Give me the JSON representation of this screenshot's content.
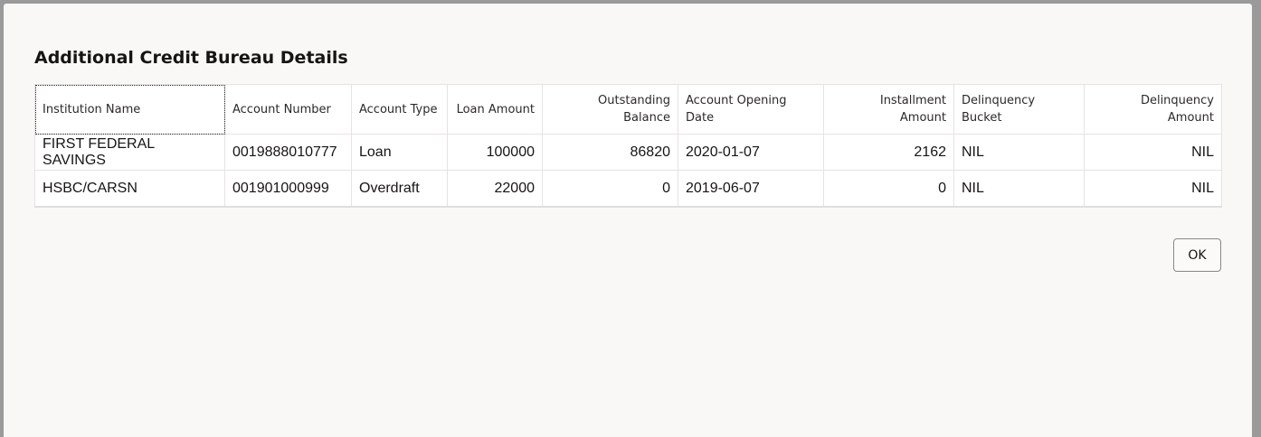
{
  "dialog": {
    "title": "Additional Credit Bureau Details",
    "ok_label": "OK"
  },
  "table": {
    "headers": [
      "Institution Name",
      "Account Number",
      "Account Type",
      "Loan Amount",
      "Outstanding Balance",
      "Account Opening Date",
      "Installment Amount",
      "Delinquency Bucket",
      "Delinquency Amount"
    ],
    "rows": [
      [
        "FIRST FEDERAL SAVINGS",
        "0019888010777",
        "Loan",
        "100000",
        "86820",
        "2020-01-07",
        "2162",
        "NIL",
        "NIL"
      ],
      [
        "HSBC/CARSN",
        "001901000999",
        "Overdraft",
        "22000",
        "0",
        "2019-06-07",
        "0",
        "NIL",
        "NIL"
      ]
    ]
  }
}
